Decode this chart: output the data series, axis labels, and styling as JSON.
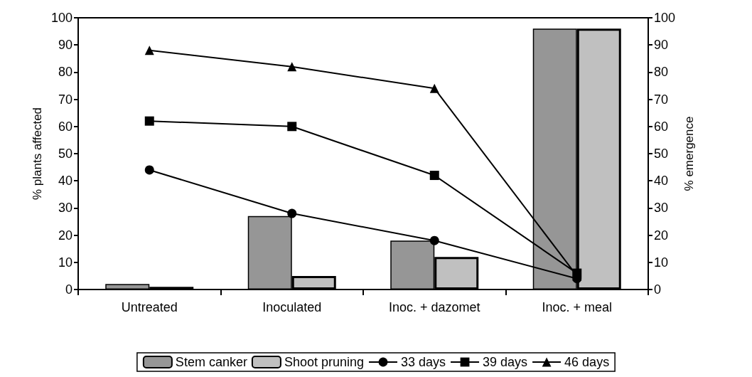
{
  "chart_data": {
    "type": "bar",
    "categories": [
      "Untreated",
      "Inoculated",
      "Inoc. + dazomet",
      "Inoc. + meal"
    ],
    "ylabel": "% plants affected",
    "y2label": "% emergence",
    "ylim": [
      0,
      100
    ],
    "yticks": [
      0,
      10,
      20,
      30,
      40,
      50,
      60,
      70,
      80,
      90,
      100
    ],
    "y2lim": [
      0,
      100
    ],
    "y2ticks": [
      0,
      10,
      20,
      30,
      40,
      50,
      60,
      70,
      80,
      90,
      100
    ],
    "grid": false,
    "legend": "bottom",
    "series": [
      {
        "name": "Stem canker",
        "color": "#969696",
        "values": [
          2,
          27,
          18,
          96
        ]
      },
      {
        "name": "Shoot pruning",
        "color": "#c0c0c0",
        "values": [
          1,
          5,
          12,
          96
        ]
      },
      {
        "name": "33 days",
        "type": "line",
        "color": "#000000",
        "marker": "circle",
        "values": [
          44,
          28,
          18,
          4
        ]
      },
      {
        "name": "39 days",
        "type": "line",
        "color": "#000000",
        "marker": "square",
        "values": [
          62,
          60,
          42,
          6
        ]
      },
      {
        "name": "46 days",
        "type": "line",
        "color": "#000000",
        "marker": "triangle",
        "values": [
          88,
          82,
          74,
          5
        ]
      }
    ]
  }
}
